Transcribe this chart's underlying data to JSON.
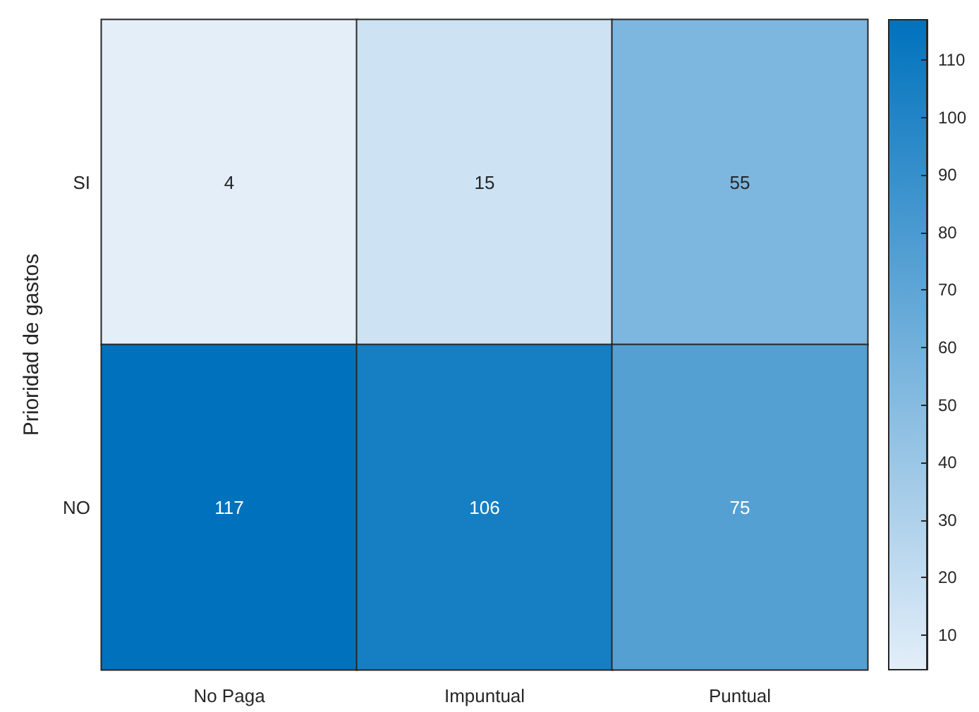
{
  "chart_data": {
    "type": "heatmap",
    "ylabel": "Prioridad de gastos",
    "categories": [
      "No Paga",
      "Impuntual",
      "Puntual"
    ],
    "y_categories": [
      "SI",
      "NO"
    ],
    "cells": [
      [
        4,
        15,
        55
      ],
      [
        117,
        106,
        75
      ]
    ],
    "data_labels": true,
    "clim": [
      4,
      117
    ],
    "cticks": [
      10,
      20,
      30,
      40,
      50,
      60,
      70,
      80,
      90,
      100,
      110
    ]
  }
}
